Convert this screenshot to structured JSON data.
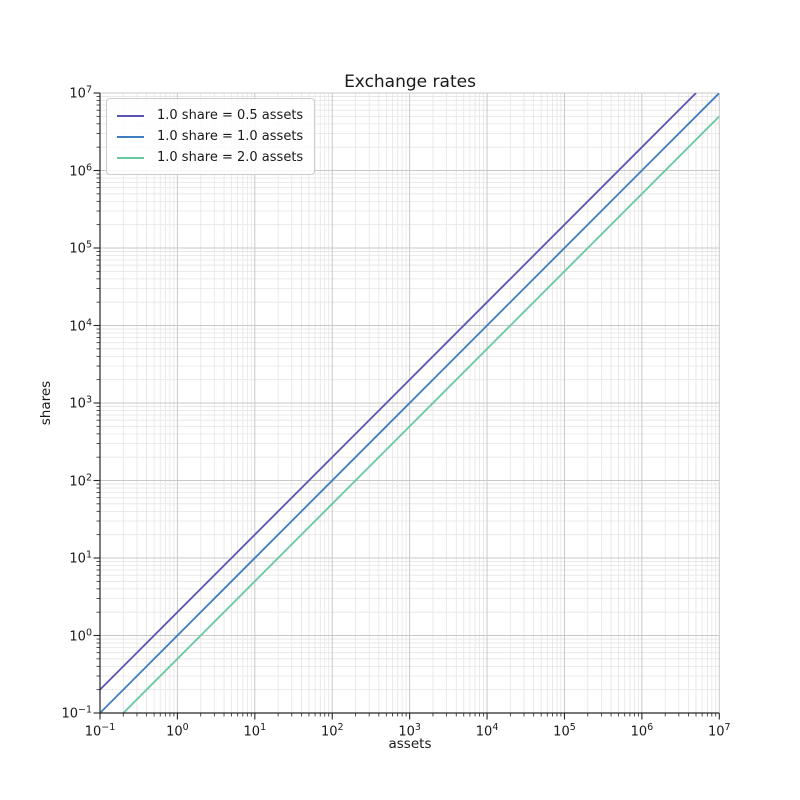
{
  "chart_data": {
    "type": "line",
    "title": "Exchange rates",
    "xlabel": "assets",
    "ylabel": "shares",
    "xscale": "log",
    "yscale": "log",
    "xlim": [
      0.1,
      10000000
    ],
    "ylim": [
      0.1,
      10000000
    ],
    "x_tick_exponents": [
      -1,
      0,
      1,
      2,
      3,
      4,
      5,
      6,
      7
    ],
    "y_tick_exponents": [
      -1,
      0,
      1,
      2,
      3,
      4,
      5,
      6,
      7
    ],
    "grid": "major+minor",
    "legend_position": "upper-left",
    "x": [
      0.1,
      1,
      10,
      100,
      1000,
      10000,
      100000,
      1000000,
      10000000
    ],
    "series": [
      {
        "name": "1.0 share = 0.5 assets",
        "color": "#5a55af",
        "assets_per_share": 0.5,
        "values": [
          0.2,
          2,
          20,
          200,
          2000,
          20000,
          200000,
          2000000,
          20000000
        ]
      },
      {
        "name": "1.0 share = 1.0 assets",
        "color": "#3e7ebf",
        "assets_per_share": 1.0,
        "values": [
          0.1,
          1,
          10,
          100,
          1000,
          10000,
          100000,
          1000000,
          10000000
        ]
      },
      {
        "name": "1.0 share = 2.0 assets",
        "color": "#68c99e",
        "assets_per_share": 2.0,
        "values": [
          0.05,
          0.5,
          5,
          50,
          500,
          5000,
          50000,
          500000,
          5000000
        ]
      }
    ],
    "colors": {
      "background": "#ffffff",
      "spine": "#262626",
      "tick": "#262626",
      "major_grid": "#c9c9c9",
      "minor_grid": "#e5e5e5",
      "text": "#1a1a1a",
      "legend_border": "#cccccc"
    }
  }
}
